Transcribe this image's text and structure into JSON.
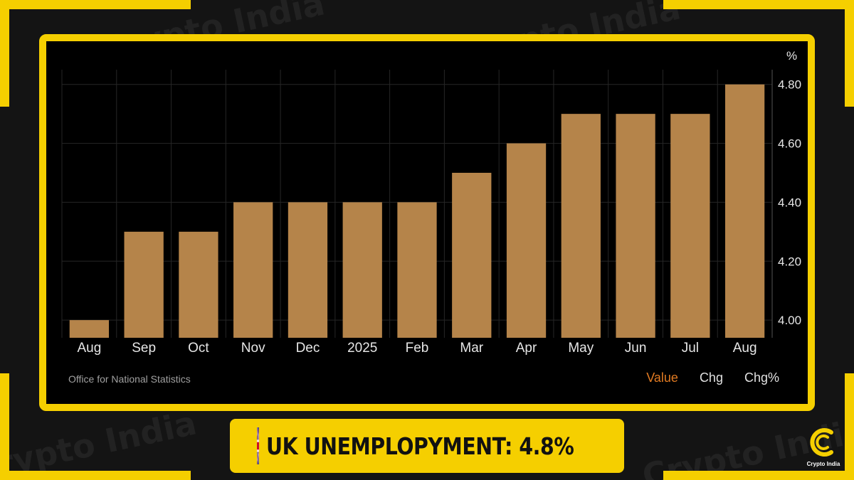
{
  "chart_data": {
    "type": "bar",
    "categories": [
      "Aug",
      "Sep",
      "Oct",
      "Nov",
      "Dec",
      "2025",
      "Feb",
      "Mar",
      "Apr",
      "May",
      "Jun",
      "Jul",
      "Aug"
    ],
    "values": [
      4.0,
      4.3,
      4.3,
      4.4,
      4.4,
      4.4,
      4.4,
      4.5,
      4.6,
      4.7,
      4.7,
      4.7,
      4.8
    ],
    "y_ticks": [
      "4.00",
      "4.20",
      "4.40",
      "4.60",
      "4.80"
    ],
    "ylim": [
      3.94,
      4.85
    ],
    "unit": "%",
    "bar_color": "#b5844a",
    "grid": true,
    "y_axis_position": "right"
  },
  "source": "Office for National Statistics",
  "tabs": [
    "Value",
    "Chg",
    "Chg%"
  ],
  "active_tab": "Value",
  "banner": {
    "text": "UK UNEMPLOPYMENT: 4.8%",
    "flag_icon": "uk-flag-icon"
  },
  "brand": {
    "name": "Crypto India",
    "watermark": "Crypto India",
    "accent_color": "#f5cf00"
  }
}
